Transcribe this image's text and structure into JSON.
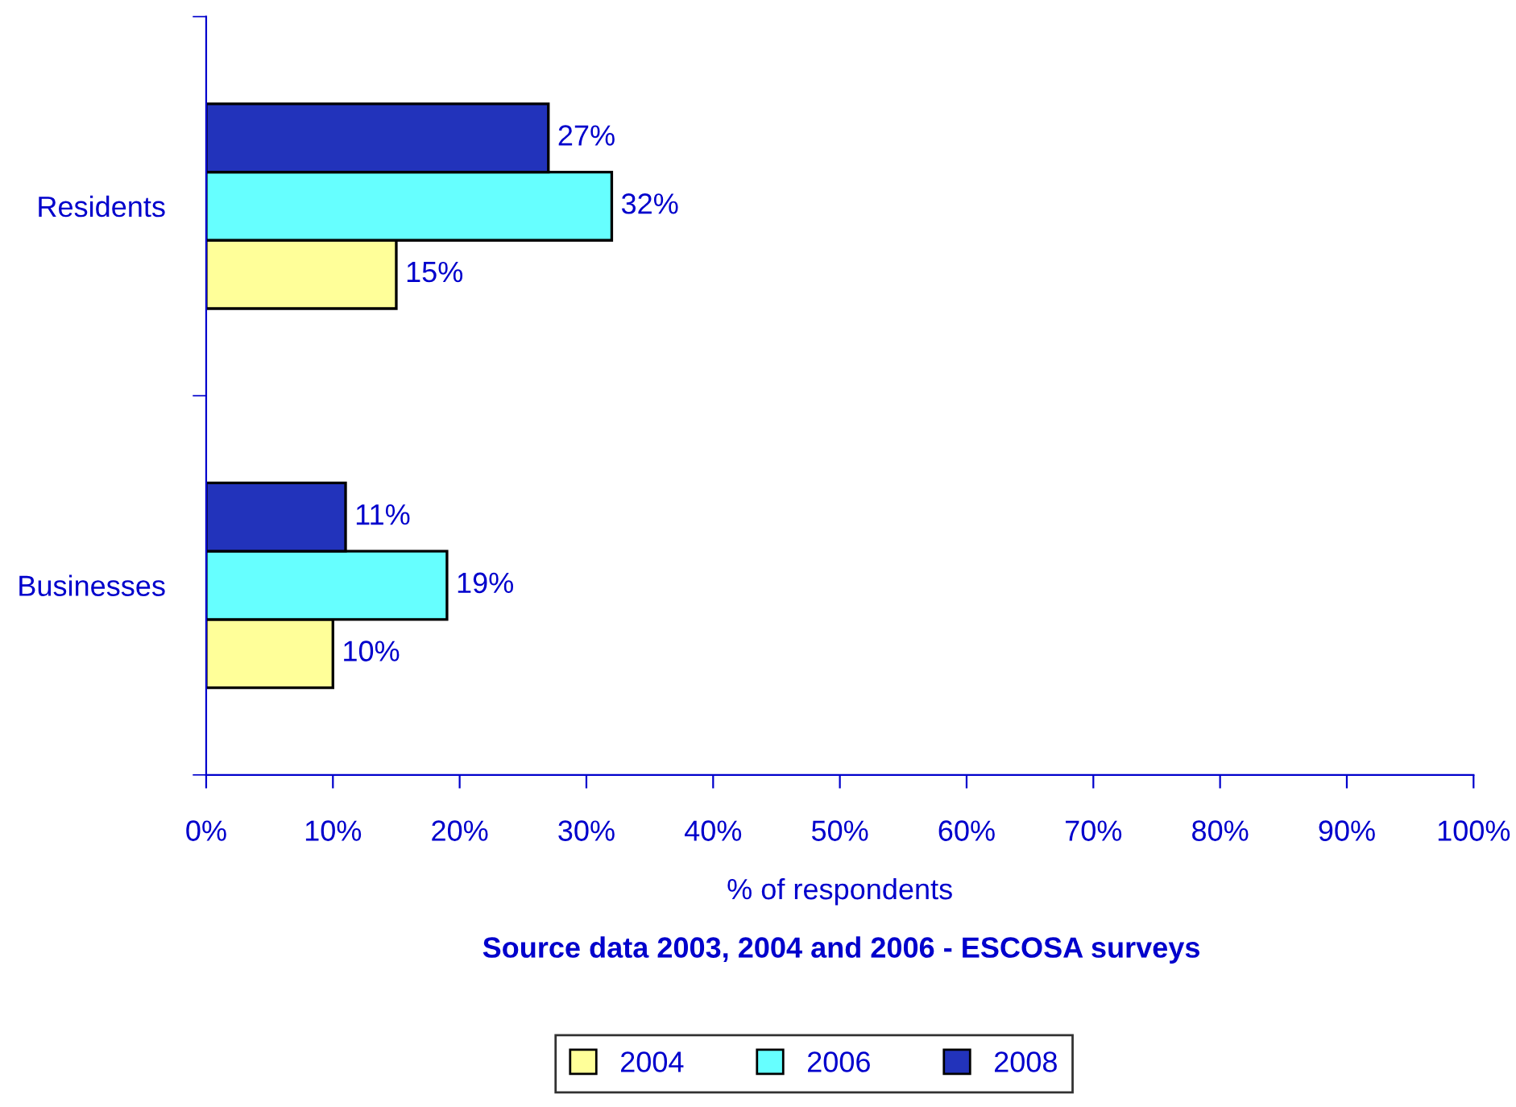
{
  "chart_data": {
    "type": "bar",
    "orientation": "horizontal",
    "categories": [
      "Residents",
      "Businesses"
    ],
    "series": [
      {
        "name": "2004",
        "color": "#ffff99",
        "values": [
          15,
          10
        ],
        "value_labels": [
          "15%",
          "10%"
        ]
      },
      {
        "name": "2006",
        "color": "#66ffff",
        "values": [
          32,
          19
        ],
        "value_labels": [
          "32%",
          "19%"
        ]
      },
      {
        "name": "2008",
        "color": "#2233bb",
        "values": [
          27,
          11
        ],
        "value_labels": [
          "27%",
          "11%"
        ]
      }
    ],
    "xlim": [
      0,
      100
    ],
    "xticks": [
      {
        "value": 0,
        "label": "0%"
      },
      {
        "value": 10,
        "label": "10%"
      },
      {
        "value": 20,
        "label": "20%"
      },
      {
        "value": 30,
        "label": "30%"
      },
      {
        "value": 40,
        "label": "40%"
      },
      {
        "value": 50,
        "label": "50%"
      },
      {
        "value": 60,
        "label": "60%"
      },
      {
        "value": 70,
        "label": "70%"
      },
      {
        "value": 80,
        "label": "80%"
      },
      {
        "value": 90,
        "label": "90%"
      },
      {
        "value": 100,
        "label": "100%"
      }
    ],
    "xlabel": "% of respondents",
    "annotations": [
      "Source data 2003, 2004 and 2006 - ESCOSA surveys"
    ],
    "legend": "bottom",
    "grid": false
  }
}
